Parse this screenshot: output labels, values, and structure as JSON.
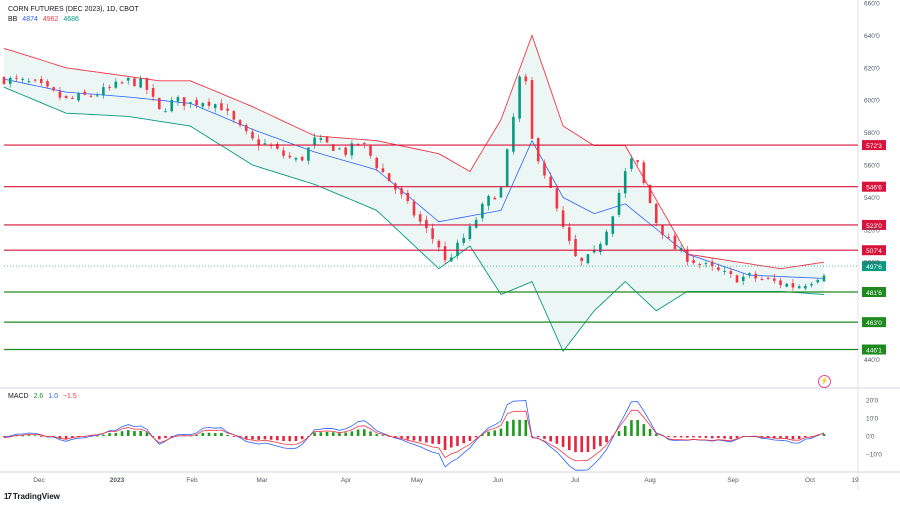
{
  "header": {
    "symbol": "CORN FUTURES (DEC 2023), 1D, CBOT",
    "bb_label": "BB",
    "bb_values": [
      "4874",
      "4962",
      "4686"
    ],
    "macd_label": "MACD",
    "macd_values": [
      "2.6",
      "1.0",
      "−1.5"
    ]
  },
  "brand": "TradingView",
  "colors": {
    "up": "#089981",
    "down": "#f23645",
    "bb_upper": "#f23645",
    "bb_lower": "#089981",
    "bb_basis": "#2962ff",
    "bb_fill": "rgba(8,153,129,0.08)",
    "res_line": "#d8143c",
    "sup_line": "#1f8a1f",
    "hist_up": "#1d9b1d",
    "hist_down": "#e5243d",
    "macd_line": "#2962ff",
    "signal_line": "#f23645"
  },
  "chart_data": [
    {
      "type": "candlestick",
      "title": "CORN FUTURES (DEC 2023), 1D, CBOT",
      "ylim": [
        420,
        660
      ],
      "y_ticks": [
        "660'0",
        "640'0",
        "620'0",
        "600'0",
        "580'0",
        "560'0",
        "540'0",
        "520'0",
        "500'0",
        "440'0"
      ],
      "x_ticks": [
        "Dec",
        "2023",
        "Feb",
        "Mar",
        "Apr",
        "May",
        "Jun",
        "Jul",
        "Aug",
        "Sep",
        "Oct",
        "19"
      ],
      "last_price": 497.6,
      "last_price_label": "497'6",
      "horizontal_levels": [
        {
          "price": 572.3,
          "label": "572'3",
          "kind": "resistance"
        },
        {
          "price": 546.6,
          "label": "546'6",
          "kind": "resistance"
        },
        {
          "price": 523.0,
          "label": "523'0",
          "kind": "resistance"
        },
        {
          "price": 507.4,
          "label": "507'4",
          "kind": "resistance"
        },
        {
          "price": 481.6,
          "label": "481'6",
          "kind": "support"
        },
        {
          "price": 463.0,
          "label": "463'0",
          "kind": "support"
        },
        {
          "price": 446.1,
          "label": "446'1",
          "kind": "support"
        }
      ],
      "close_path": [
        [
          0,
          613
        ],
        [
          10,
          610
        ],
        [
          20,
          600
        ],
        [
          30,
          604
        ],
        [
          40,
          612
        ],
        [
          45,
          610
        ],
        [
          50,
          593
        ],
        [
          55,
          600
        ],
        [
          60,
          598
        ],
        [
          65,
          600
        ],
        [
          70,
          596
        ],
        [
          75,
          584
        ],
        [
          80,
          575
        ],
        [
          85,
          572
        ],
        [
          90,
          566
        ],
        [
          95,
          562
        ],
        [
          100,
          575
        ],
        [
          105,
          572
        ],
        [
          110,
          568
        ],
        [
          115,
          574
        ],
        [
          120,
          560
        ],
        [
          125,
          548
        ],
        [
          130,
          535
        ],
        [
          135,
          522
        ],
        [
          140,
          510
        ],
        [
          142,
          500
        ],
        [
          145,
          507
        ],
        [
          150,
          520
        ],
        [
          155,
          537
        ],
        [
          160,
          545
        ],
        [
          165,
          600
        ],
        [
          167,
          626
        ],
        [
          170,
          575
        ],
        [
          175,
          550
        ],
        [
          180,
          520
        ],
        [
          185,
          498
        ],
        [
          190,
          505
        ],
        [
          195,
          525
        ],
        [
          200,
          555
        ],
        [
          203,
          566
        ],
        [
          206,
          548
        ],
        [
          210,
          525
        ],
        [
          215,
          510
        ],
        [
          220,
          503
        ],
        [
          225,
          498
        ],
        [
          230,
          494
        ],
        [
          235,
          490
        ],
        [
          240,
          491
        ],
        [
          245,
          489
        ],
        [
          250,
          487
        ],
        [
          255,
          485
        ],
        [
          260,
          489
        ],
        [
          264,
          494
        ]
      ],
      "bollinger": {
        "upper": [
          [
            0,
            632
          ],
          [
            20,
            620
          ],
          [
            50,
            612
          ],
          [
            60,
            612
          ],
          [
            80,
            596
          ],
          [
            100,
            578
          ],
          [
            120,
            575
          ],
          [
            140,
            567
          ],
          [
            150,
            556
          ],
          [
            160,
            588
          ],
          [
            170,
            640
          ],
          [
            180,
            584
          ],
          [
            190,
            572
          ],
          [
            200,
            572
          ],
          [
            220,
            505
          ],
          [
            250,
            496
          ],
          [
            264,
            500
          ]
        ],
        "basis": [
          [
            0,
            613
          ],
          [
            20,
            605
          ],
          [
            40,
            602
          ],
          [
            60,
            598
          ],
          [
            80,
            582
          ],
          [
            100,
            568
          ],
          [
            120,
            557
          ],
          [
            140,
            525
          ],
          [
            160,
            532
          ],
          [
            170,
            575
          ],
          [
            180,
            540
          ],
          [
            190,
            530
          ],
          [
            200,
            536
          ],
          [
            220,
            505
          ],
          [
            240,
            492
          ],
          [
            264,
            490
          ]
        ],
        "lower": [
          [
            0,
            608
          ],
          [
            20,
            592
          ],
          [
            40,
            590
          ],
          [
            60,
            584
          ],
          [
            80,
            560
          ],
          [
            100,
            548
          ],
          [
            120,
            532
          ],
          [
            140,
            496
          ],
          [
            150,
            510
          ],
          [
            160,
            480
          ],
          [
            170,
            488
          ],
          [
            180,
            445
          ],
          [
            190,
            470
          ],
          [
            200,
            488
          ],
          [
            210,
            470
          ],
          [
            220,
            482
          ],
          [
            250,
            482
          ],
          [
            264,
            480
          ]
        ]
      }
    },
    {
      "type": "bar",
      "title": "MACD",
      "y_ticks": [
        "20'0",
        "10'0",
        "0'0",
        "−10'0"
      ],
      "ylim": [
        -15,
        22
      ],
      "series": [
        {
          "name": "2.6",
          "kind": "histogram"
        },
        {
          "name": "1.0",
          "kind": "line"
        },
        {
          "name": "−1.5",
          "kind": "signal"
        }
      ]
    }
  ]
}
